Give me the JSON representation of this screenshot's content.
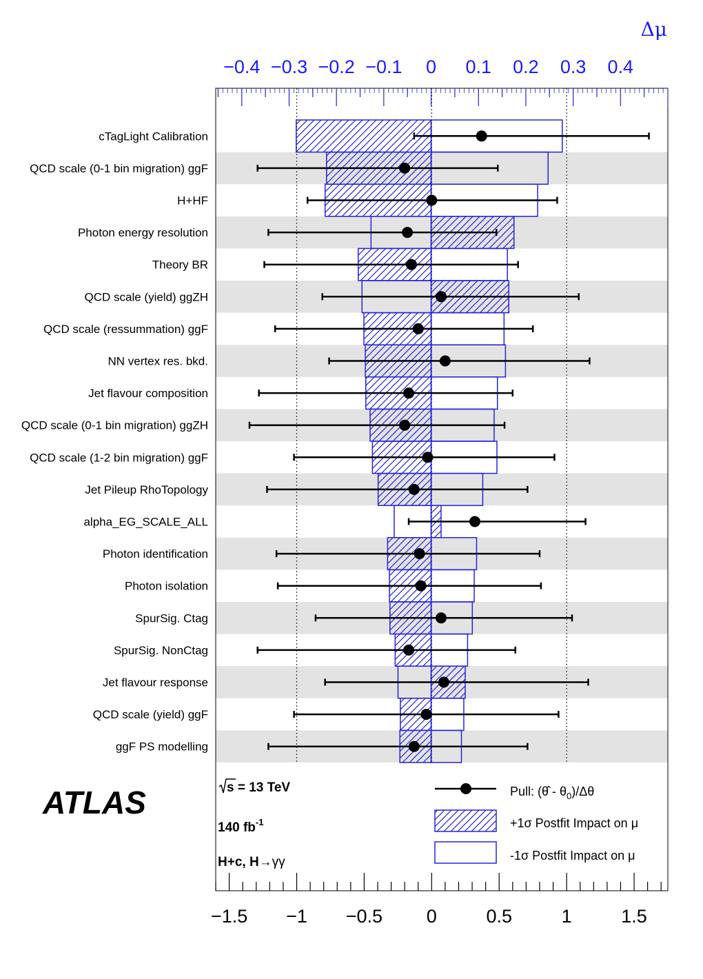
{
  "chart_data": {
    "type": "ranking",
    "top_axis_label": "Δμ",
    "top_axis_range": [
      -0.455,
      0.5
    ],
    "top_ticks": [
      "−0.4",
      "−0.3",
      "−0.2",
      "−0.1",
      "0",
      "0.1",
      "0.2",
      "0.3",
      "0.4"
    ],
    "top_tick_values": [
      -0.4,
      -0.3,
      -0.2,
      -0.1,
      0,
      0.1,
      0.2,
      0.3,
      0.4
    ],
    "bottom_axis_range": [
      -1.6,
      1.75
    ],
    "bottom_ticks": [
      "−1.5",
      "−1",
      "−0.5",
      "0",
      "0.5",
      "1",
      "1.5"
    ],
    "bottom_tick_values": [
      -1.5,
      -1,
      -0.5,
      0,
      0.5,
      1,
      1.5
    ],
    "reference_lines": [
      -1,
      0,
      1
    ],
    "colors": {
      "impact": "#2323dd",
      "pull": "#000000",
      "stripe": "#e3e3e3"
    },
    "parameters": [
      {
        "name": "cTagLight Calibration",
        "pull": 0.37,
        "pull_err_low": 0.5,
        "pull_err_high": 1.24,
        "impact_up": -0.285,
        "impact_down": 0.277
      },
      {
        "name": "QCD scale (0-1 bin migration) ggF",
        "pull": -0.2,
        "pull_err_low": 1.09,
        "pull_err_high": 0.69,
        "impact_up": -0.221,
        "impact_down": 0.247
      },
      {
        "name": "H+HF",
        "pull": 0.0,
        "pull_err_low": 0.92,
        "pull_err_high": 0.93,
        "impact_up": -0.224,
        "impact_down": 0.225
      },
      {
        "name": "Photon energy resolution",
        "pull": -0.18,
        "pull_err_low": 1.03,
        "pull_err_high": 0.66,
        "impact_up": 0.175,
        "impact_down": -0.127
      },
      {
        "name": "Theory BR",
        "pull": -0.15,
        "pull_err_low": 1.09,
        "pull_err_high": 0.79,
        "impact_up": -0.154,
        "impact_down": 0.161
      },
      {
        "name": "QCD scale (yield) ggZH",
        "pull": 0.07,
        "pull_err_low": 0.88,
        "pull_err_high": 1.02,
        "impact_up": 0.164,
        "impact_down": -0.146
      },
      {
        "name": "QCD scale (ressummation) ggF",
        "pull": -0.1,
        "pull_err_low": 1.06,
        "pull_err_high": 0.85,
        "impact_up": -0.142,
        "impact_down": 0.154
      },
      {
        "name": "NN vertex res. bkd.",
        "pull": 0.1,
        "pull_err_low": 0.86,
        "pull_err_high": 1.07,
        "impact_up": -0.139,
        "impact_down": 0.157
      },
      {
        "name": "Jet flavour composition",
        "pull": -0.17,
        "pull_err_low": 1.11,
        "pull_err_high": 0.77,
        "impact_up": -0.138,
        "impact_down": 0.14
      },
      {
        "name": "QCD scale (0-1 bin migration) ggZH",
        "pull": -0.2,
        "pull_err_low": 1.15,
        "pull_err_high": 0.74,
        "impact_up": -0.129,
        "impact_down": 0.133
      },
      {
        "name": "QCD scale (1-2 bin migration) ggF",
        "pull": -0.03,
        "pull_err_low": 0.99,
        "pull_err_high": 0.94,
        "impact_up": -0.124,
        "impact_down": 0.139
      },
      {
        "name": "Jet Pileup RhoTopology",
        "pull": -0.13,
        "pull_err_low": 1.09,
        "pull_err_high": 0.84,
        "impact_up": -0.112,
        "impact_down": 0.109
      },
      {
        "name": "alpha_EG_SCALE_ALL",
        "pull": 0.32,
        "pull_err_low": 0.49,
        "pull_err_high": 0.82,
        "impact_up": 0.021,
        "impact_down": -0.078
      },
      {
        "name": "Photon identification",
        "pull": -0.09,
        "pull_err_low": 1.06,
        "pull_err_high": 0.89,
        "impact_up": -0.092,
        "impact_down": 0.096
      },
      {
        "name": "Photon isolation",
        "pull": -0.08,
        "pull_err_low": 1.06,
        "pull_err_high": 0.89,
        "impact_up": -0.088,
        "impact_down": 0.091
      },
      {
        "name": "SpurSig. Ctag",
        "pull": 0.07,
        "pull_err_low": 0.93,
        "pull_err_high": 0.97,
        "impact_up": -0.087,
        "impact_down": 0.087
      },
      {
        "name": "SpurSig. NonCtag",
        "pull": -0.17,
        "pull_err_low": 1.12,
        "pull_err_high": 0.79,
        "impact_up": -0.076,
        "impact_down": 0.077
      },
      {
        "name": "Jet flavour response",
        "pull": 0.09,
        "pull_err_low": 0.88,
        "pull_err_high": 1.07,
        "impact_up": 0.072,
        "impact_down": -0.07
      },
      {
        "name": "QCD scale (yield) ggF",
        "pull": -0.04,
        "pull_err_low": 0.98,
        "pull_err_high": 0.98,
        "impact_up": -0.065,
        "impact_down": 0.069
      },
      {
        "name": "ggF PS modelling",
        "pull": -0.13,
        "pull_err_low": 1.08,
        "pull_err_high": 0.84,
        "impact_up": -0.066,
        "impact_down": 0.064
      }
    ]
  },
  "labels": {
    "experiment": "ATLAS",
    "energy_prefix": "s",
    "energy_suffix": " = 13 TeV",
    "lumi": "140 fb",
    "lumi_exp": "-1",
    "channel_prefix": "H+c, H",
    "channel_arrow": "→",
    "channel_suffix": "γγ"
  },
  "legend": {
    "pull": "Pull: (θ̂ -   θ",
    "pull_sub": "0",
    "pull_tail": ")/Δθ",
    "plus": "+1σ Postfit Impact on   μ",
    "minus": "-1σ Postfit Impact on   μ"
  }
}
